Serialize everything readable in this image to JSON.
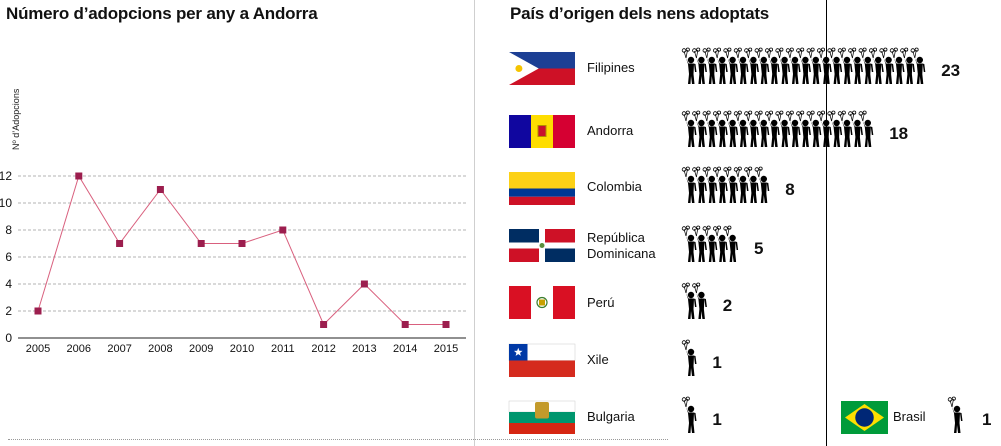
{
  "left_panel": {
    "title": "Número d’adopcions per any a Andorra",
    "ylabel": "Nº d’Adopcions"
  },
  "right_panel": {
    "title": "País d’origen dels nens adoptats"
  },
  "chart_data": [
    {
      "type": "line",
      "title": "Número d’adopcions per any a Andorra",
      "xlabel": "",
      "ylabel": "Nº d’Adopcions",
      "x": [
        "2005",
        "2006",
        "2007",
        "2008",
        "2009",
        "2010",
        "2011",
        "2012",
        "2013",
        "2014",
        "2015"
      ],
      "values": [
        2,
        12,
        7,
        11,
        7,
        7,
        8,
        1,
        4,
        1,
        1
      ],
      "ylim": [
        0,
        12
      ],
      "yticks": [
        0,
        2,
        4,
        6,
        8,
        10,
        12
      ],
      "grid": true,
      "line_color": "#d9607e",
      "marker_color": "#9c1e4e"
    },
    {
      "type": "bar",
      "title": "País d’origen dels nens adoptats",
      "categories": [
        "Filipines",
        "Andorra",
        "Colombia",
        "República Dominicana",
        "Perú",
        "Xile",
        "Bulgaria",
        "Brasil"
      ],
      "values": [
        23,
        18,
        8,
        5,
        2,
        1,
        1,
        1
      ],
      "flags": [
        "philippines-flag",
        "andorra-flag",
        "colombia-flag",
        "dominican-republic-flag",
        "peru-flag",
        "chile-flag",
        "bulgaria-flag",
        "brazil-flag"
      ],
      "icon": "child-with-balloon-icon"
    }
  ]
}
